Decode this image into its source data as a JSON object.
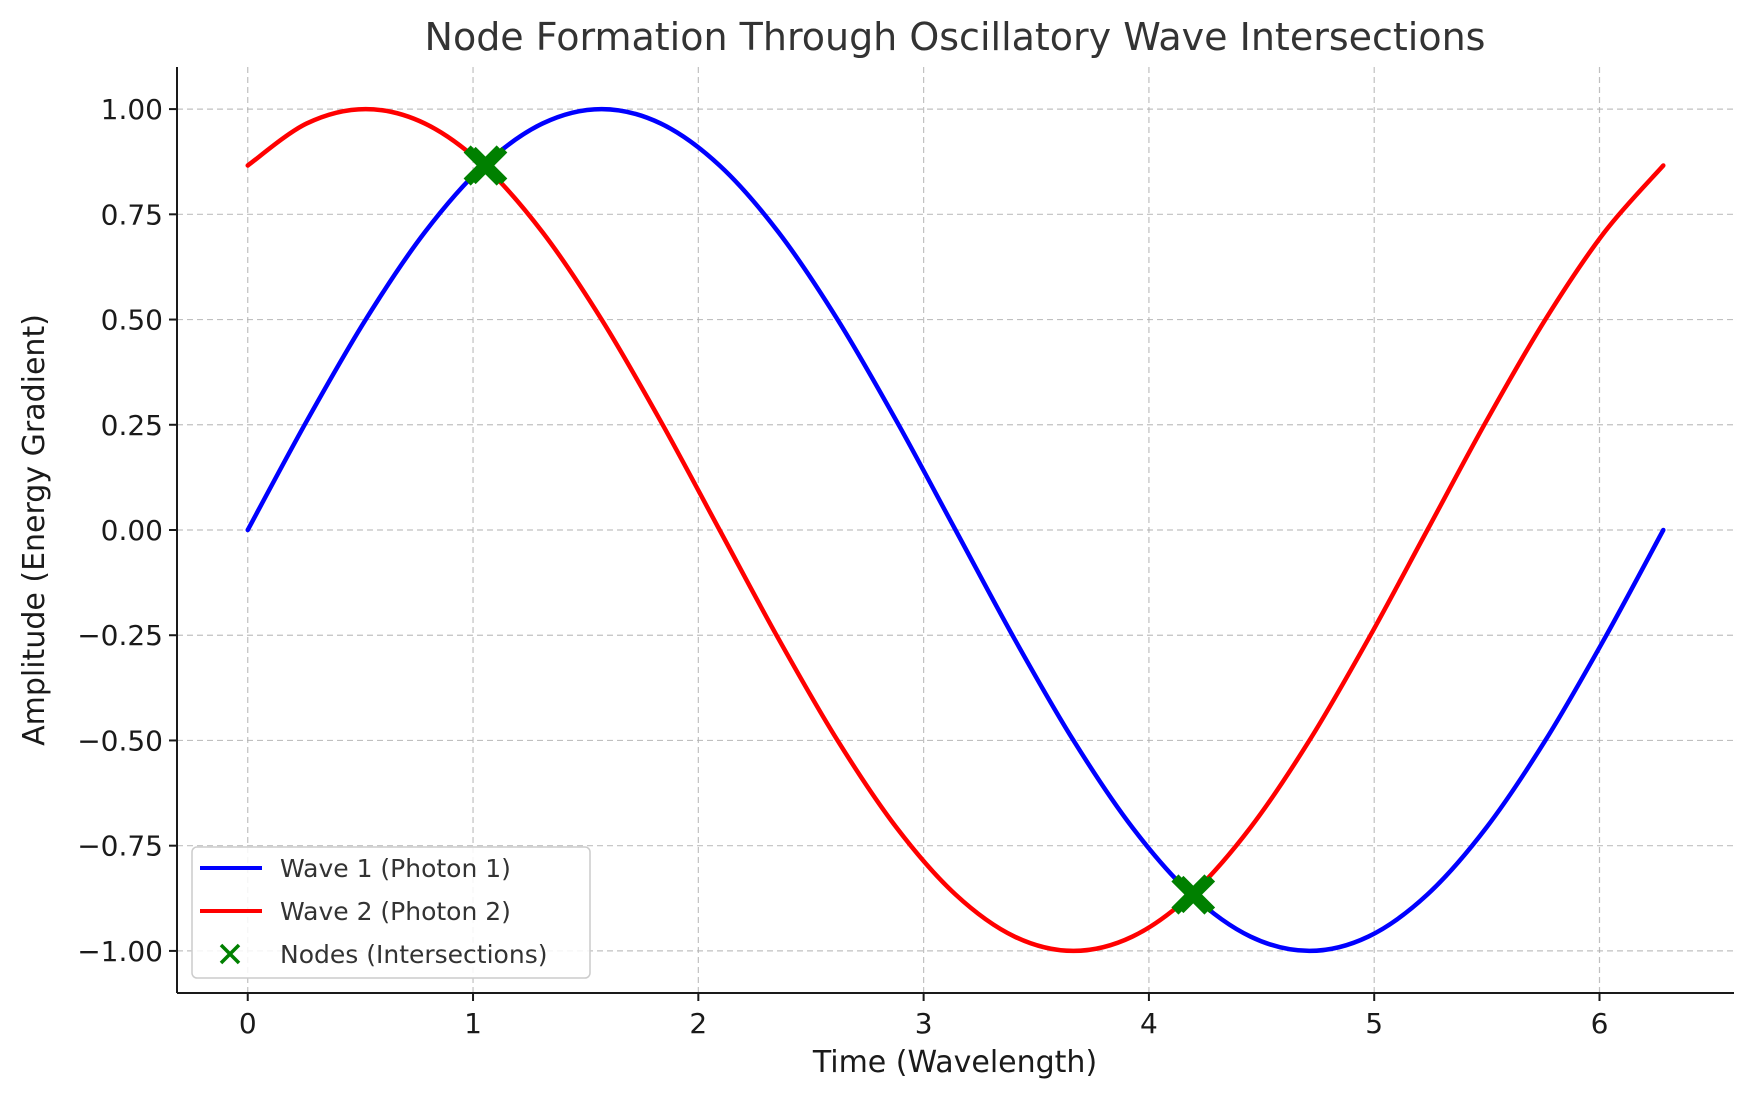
{
  "chart_data": {
    "type": "line",
    "title": "Node Formation Through Oscillatory Wave Intersections",
    "xlabel": "Time (Wavelength)",
    "ylabel": "Amplitude (Energy Gradient)",
    "xlim": [
      -0.314,
      6.597
    ],
    "ylim": [
      -1.1,
      1.1
    ],
    "xticks": [
      0,
      1,
      2,
      3,
      4,
      5,
      6
    ],
    "xtick_labels": [
      "0",
      "1",
      "2",
      "3",
      "4",
      "5",
      "6"
    ],
    "yticks": [
      1.0,
      0.75,
      0.5,
      0.25,
      0.0,
      -0.25,
      -0.5,
      -0.75,
      -1.0
    ],
    "ytick_labels": [
      "1.00",
      "0.75",
      "0.50",
      "0.25",
      "0.00",
      "−0.25",
      "−0.50",
      "−0.75",
      "−1.00"
    ],
    "grid": true,
    "legend_position": "lower-left",
    "series": [
      {
        "name": "Wave 1 (Photon 1)",
        "color": "#0000ff",
        "x": [
          0,
          0.2618,
          0.5236,
          0.7854,
          1.0472,
          1.309,
          1.5708,
          1.8326,
          2.0944,
          2.3562,
          2.618,
          2.8798,
          3.1416,
          3.4034,
          3.6652,
          3.927,
          4.1888,
          4.4506,
          4.7124,
          4.9742,
          5.236,
          5.4978,
          5.7596,
          6.0214,
          6.2832
        ],
        "y": [
          0,
          0.2588,
          0.5,
          0.7071,
          0.866,
          0.9659,
          1.0,
          0.9659,
          0.866,
          0.7071,
          0.5,
          0.2588,
          0,
          -0.2588,
          -0.5,
          -0.7071,
          -0.866,
          -0.9659,
          -1.0,
          -0.9659,
          -0.866,
          -0.7071,
          -0.5,
          -0.2588,
          0
        ]
      },
      {
        "name": "Wave 2 (Photon 2)",
        "color": "#ff0000",
        "x": [
          0,
          0.2618,
          0.5236,
          0.7854,
          1.0472,
          1.309,
          1.5708,
          1.8326,
          2.0944,
          2.3562,
          2.618,
          2.8798,
          3.1416,
          3.4034,
          3.6652,
          3.927,
          4.1888,
          4.4506,
          4.7124,
          4.9742,
          5.236,
          5.4978,
          5.7596,
          6.0214,
          6.2832
        ],
        "y": [
          0.866,
          0.9659,
          1.0,
          0.9659,
          0.866,
          0.7071,
          0.5,
          0.2588,
          0,
          -0.2588,
          -0.5,
          -0.7071,
          -0.866,
          -0.9659,
          -1.0,
          -0.9659,
          -0.866,
          -0.7071,
          -0.5,
          -0.2588,
          0,
          0.2588,
          0.5,
          0.7071,
          0.866
        ]
      }
    ],
    "nodes": {
      "name": "Nodes (Intersections)",
      "color": "#008000",
      "marker": "x",
      "points": [
        {
          "x": 1.0472,
          "y": 0.866
        },
        {
          "x": 4.1888,
          "y": -0.866
        }
      ]
    }
  }
}
